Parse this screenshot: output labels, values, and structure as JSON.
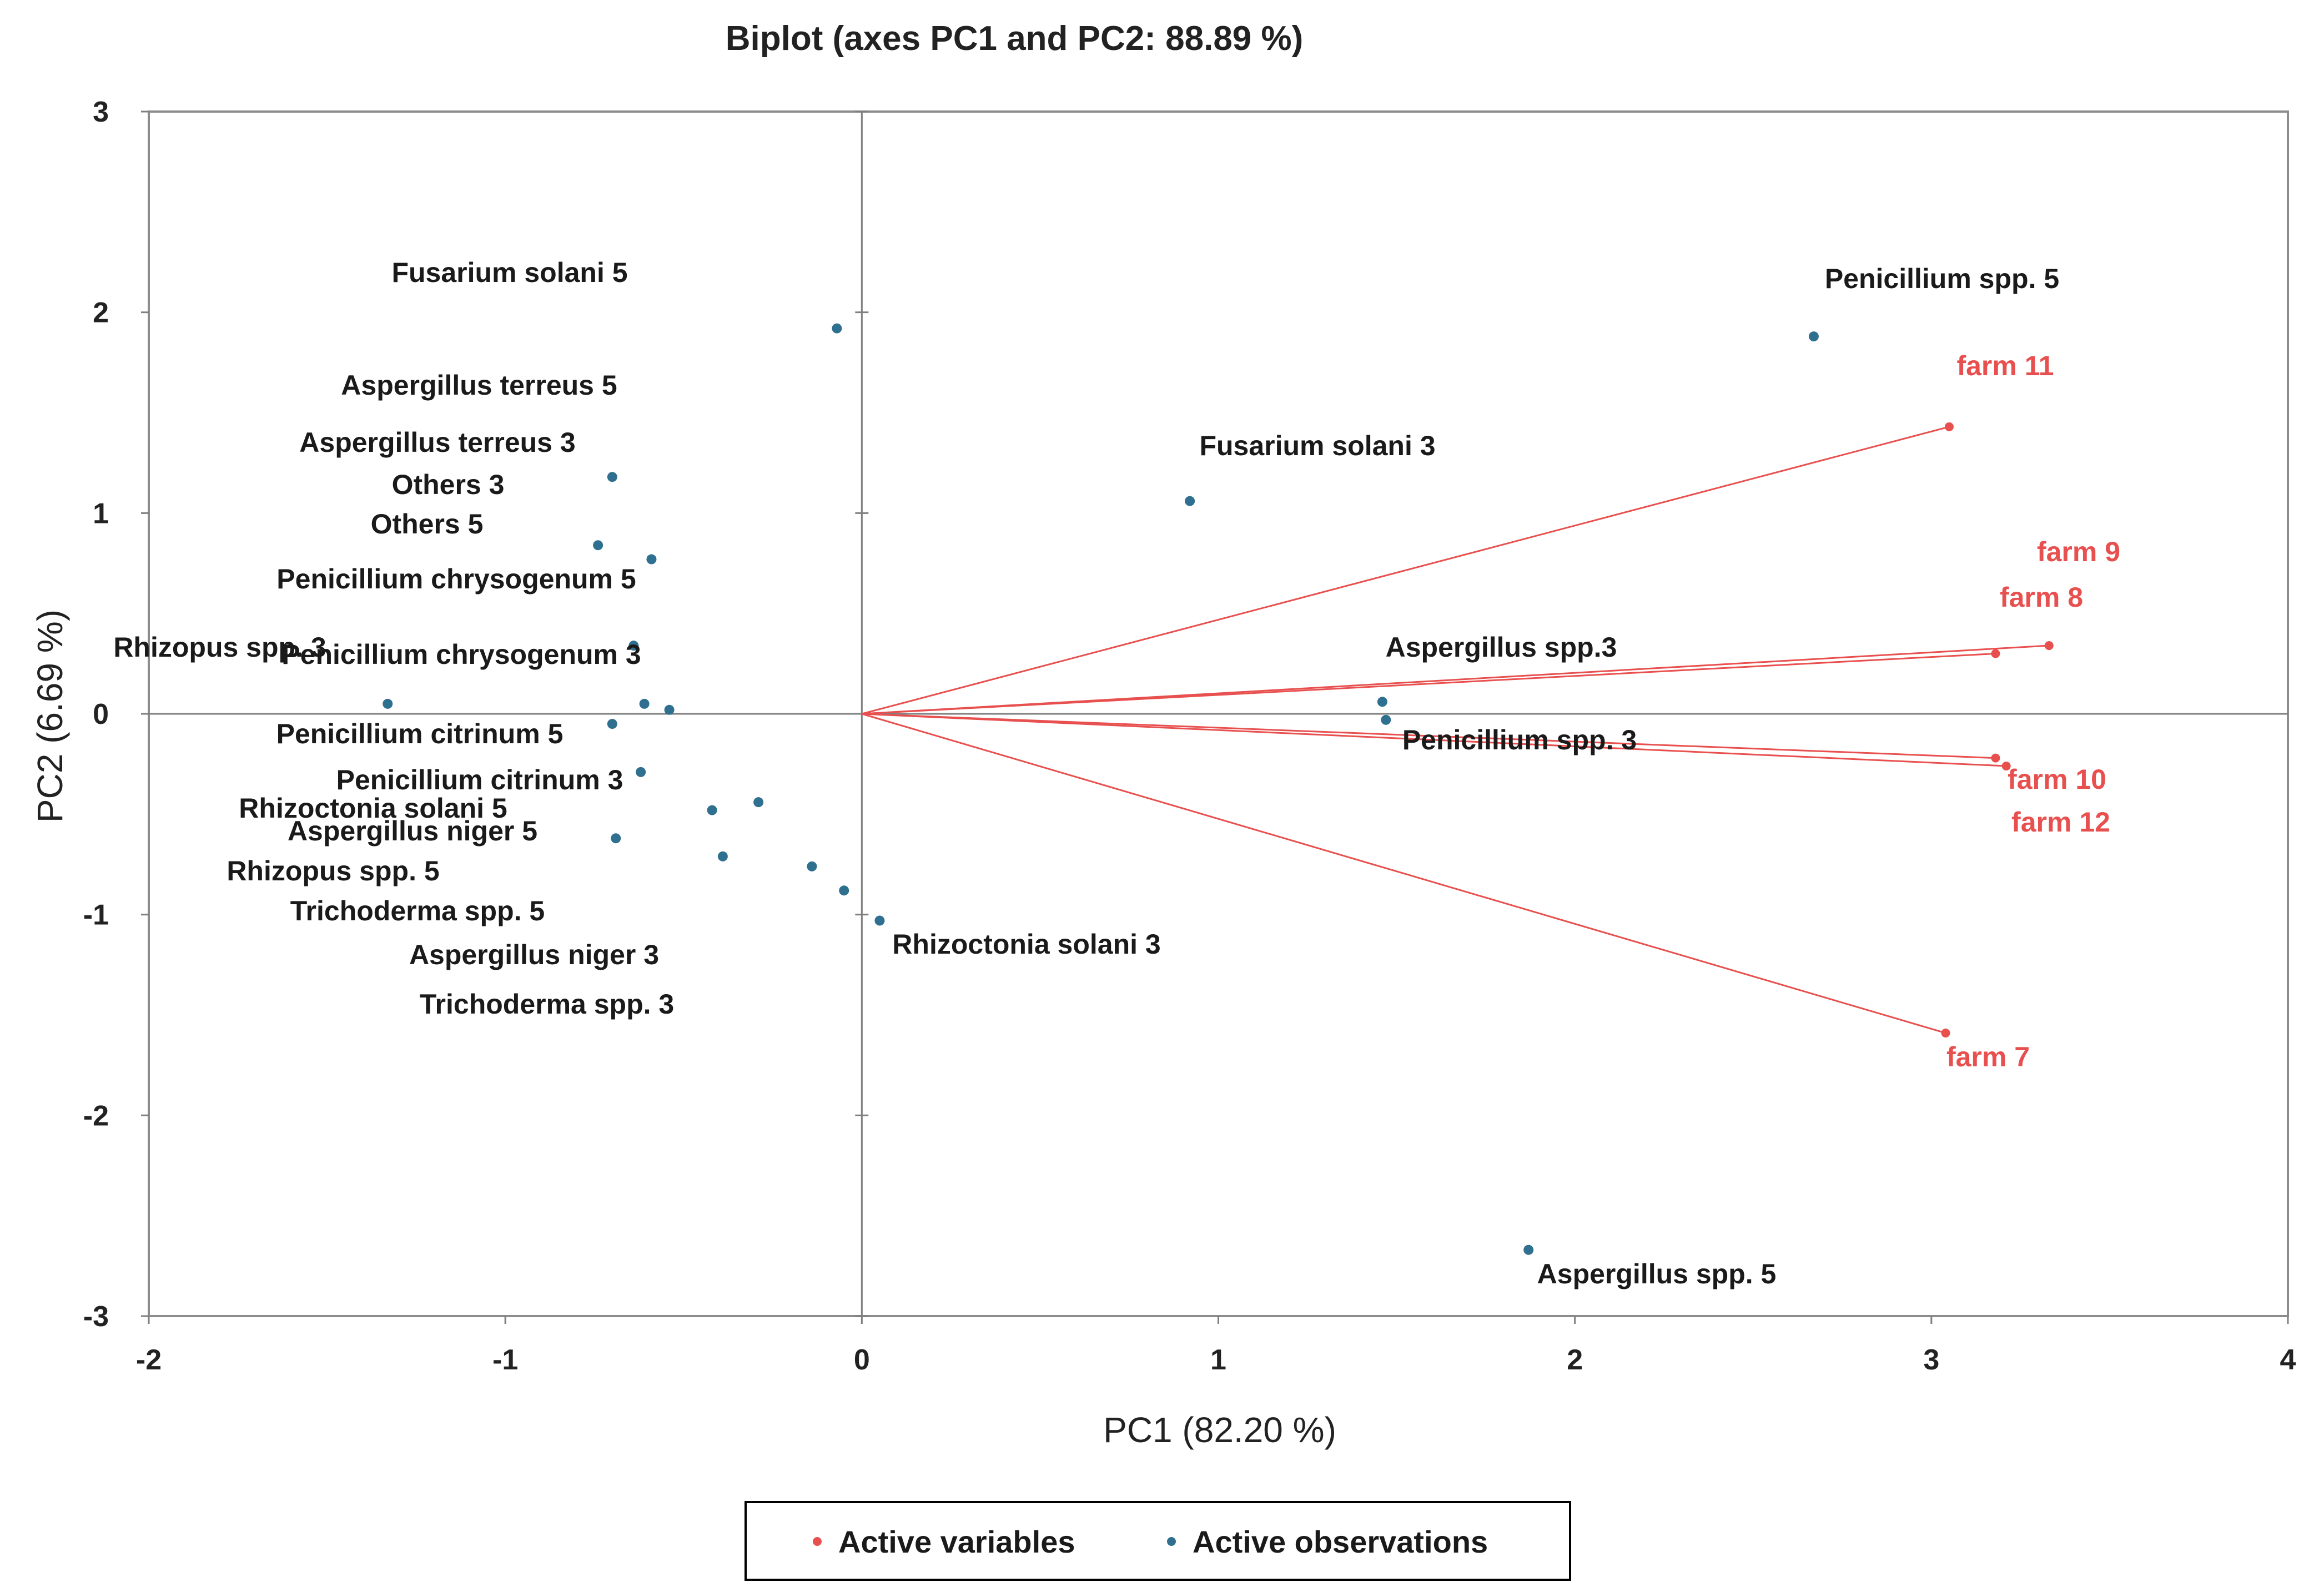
{
  "chart_data": {
    "type": "scatter",
    "title": "Biplot (axes PC1 and PC2: 88.89 %)",
    "xlabel": "PC1 (82.20 %)",
    "ylabel": "PC2 (6.69 %)",
    "xlim": [
      -2,
      4
    ],
    "ylim": [
      -3,
      3
    ],
    "xticks": [
      -2,
      -1,
      0,
      1,
      2,
      3,
      4
    ],
    "yticks": [
      -3,
      -2,
      -1,
      0,
      1,
      2,
      3
    ],
    "grid": false,
    "legend_position": "bottom-center",
    "colors": {
      "variables": "#e8504f",
      "observations": "#2f6f8f",
      "axis": "#7f7f7f"
    },
    "series": [
      {
        "name": "Active variables",
        "kind": "vectors",
        "points": [
          {
            "label": "farm 11",
            "x": 3.05,
            "y": 1.43
          },
          {
            "label": "farm 9",
            "x": 3.33,
            "y": 0.34
          },
          {
            "label": "farm 8",
            "x": 3.18,
            "y": 0.3
          },
          {
            "label": "farm 10",
            "x": 3.18,
            "y": -0.22
          },
          {
            "label": "farm 12",
            "x": 3.21,
            "y": -0.26
          },
          {
            "label": "farm 7",
            "x": 3.04,
            "y": -1.59
          }
        ]
      },
      {
        "name": "Active observations",
        "kind": "points",
        "points": [
          {
            "label": "Fusarium solani 5",
            "x": -0.07,
            "y": 1.92
          },
          {
            "label": "Aspergillus terreus 5",
            "x": -0.7,
            "y": 1.18
          },
          {
            "label": "Aspergillus terreus 3",
            "x": -0.74,
            "y": 0.84
          },
          {
            "label": "Others 3",
            "x": -0.59,
            "y": 0.77
          },
          {
            "label": "Others 5",
            "x": -0.64,
            "y": 0.34
          },
          {
            "label": "Penicillium chrysogenum 5",
            "x": -0.61,
            "y": 0.05
          },
          {
            "label": "Penicillium chrysogenum 3",
            "x": -0.54,
            "y": 0.02
          },
          {
            "label": "Rhizopus spp. 3",
            "x": -1.33,
            "y": 0.05
          },
          {
            "label": "Penicillium citrinum 5",
            "x": -0.7,
            "y": -0.05
          },
          {
            "label": "Penicillium citrinum 3",
            "x": -0.62,
            "y": -0.29
          },
          {
            "label": "Rhizoctonia solani 5",
            "x": -0.42,
            "y": -0.48
          },
          {
            "label": "Aspergillus niger 5",
            "x": -0.29,
            "y": -0.44
          },
          {
            "label": "Rhizopus spp. 5",
            "x": -0.69,
            "y": -0.62
          },
          {
            "label": "Trichoderma spp. 5",
            "x": -0.39,
            "y": -0.71
          },
          {
            "label": "Aspergillus niger 3",
            "x": -0.14,
            "y": -0.76
          },
          {
            "label": "Trichoderma spp. 3",
            "x": -0.05,
            "y": -0.88
          },
          {
            "label": "Rhizoctonia solani 3",
            "x": 0.05,
            "y": -1.03
          },
          {
            "label": "Fusarium solani 3",
            "x": 0.92,
            "y": 1.06
          },
          {
            "label": "Aspergillus spp.3",
            "x": 1.46,
            "y": 0.06
          },
          {
            "label": "Penicillium spp. 3",
            "x": 1.47,
            "y": -0.03
          },
          {
            "label": "Penicillium spp. 5",
            "x": 2.67,
            "y": 1.88
          },
          {
            "label": "Aspergillus spp. 5",
            "x": 1.87,
            "y": -2.67
          }
        ]
      }
    ]
  }
}
